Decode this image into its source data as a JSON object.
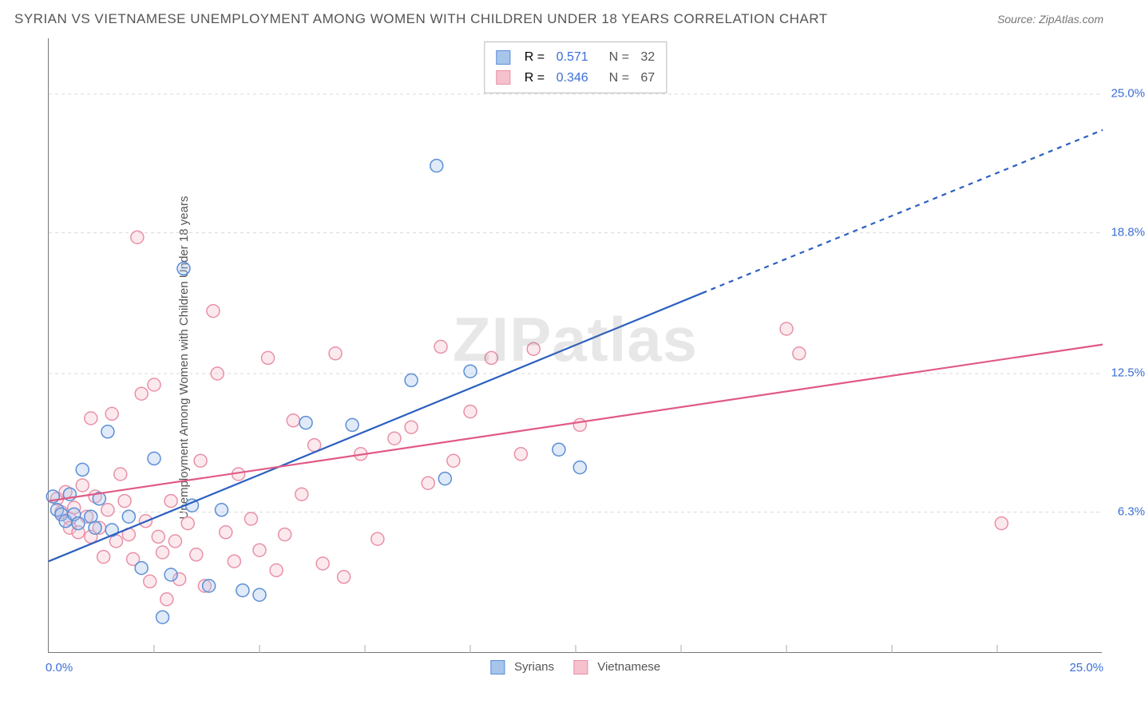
{
  "title": "SYRIAN VS VIETNAMESE UNEMPLOYMENT AMONG WOMEN WITH CHILDREN UNDER 18 YEARS CORRELATION CHART",
  "source": "Source: ZipAtlas.com",
  "watermark": "ZIPatlas",
  "ylabel": "Unemployment Among Women with Children Under 18 years",
  "chart": {
    "type": "scatter",
    "xlim": [
      0,
      25
    ],
    "ylim": [
      0,
      27.5
    ],
    "x_ticks_minor": [
      2.5,
      5.0,
      7.5,
      10.0,
      12.5,
      15.0,
      17.5,
      20.0,
      22.5
    ],
    "x_tick_labels": {
      "min": "0.0%",
      "max": "25.0%"
    },
    "y_grid": [
      6.3,
      12.5,
      18.8,
      25.0
    ],
    "y_tick_labels": [
      "6.3%",
      "12.5%",
      "18.8%",
      "25.0%"
    ],
    "grid_color": "#d9d9d9",
    "background_color": "#ffffff",
    "axis_color": "#777777",
    "tick_label_color": "#3b6fd6",
    "marker_radius": 8,
    "marker_stroke_width": 1.5,
    "marker_fill_opacity": 0.35,
    "trend_line_width": 2.2,
    "series": [
      {
        "name": "Syrians",
        "color_stroke": "#5b8fd6",
        "color_fill": "#a7c4ea",
        "trend_color": "#2b5fc0",
        "R": "0.571",
        "N": "32",
        "trend": {
          "x1": 0,
          "y1": 4.1,
          "x2_solid": 15.5,
          "y2_solid": 16.1,
          "x2_dash": 25,
          "y2_dash": 23.4
        },
        "points": [
          [
            0.1,
            7.0
          ],
          [
            0.2,
            6.4
          ],
          [
            0.3,
            6.2
          ],
          [
            0.4,
            5.9
          ],
          [
            0.5,
            7.1
          ],
          [
            0.6,
            6.2
          ],
          [
            0.7,
            5.8
          ],
          [
            0.8,
            8.2
          ],
          [
            1.0,
            6.1
          ],
          [
            1.1,
            5.6
          ],
          [
            1.2,
            6.9
          ],
          [
            1.4,
            9.9
          ],
          [
            1.5,
            5.5
          ],
          [
            1.9,
            6.1
          ],
          [
            2.2,
            3.8
          ],
          [
            2.5,
            8.7
          ],
          [
            2.7,
            1.6
          ],
          [
            2.9,
            3.5
          ],
          [
            3.2,
            17.2
          ],
          [
            3.4,
            6.6
          ],
          [
            3.8,
            3.0
          ],
          [
            4.1,
            6.4
          ],
          [
            4.6,
            2.8
          ],
          [
            5.0,
            2.6
          ],
          [
            6.1,
            10.3
          ],
          [
            7.2,
            10.2
          ],
          [
            8.6,
            12.2
          ],
          [
            9.2,
            21.8
          ],
          [
            9.4,
            7.8
          ],
          [
            10.0,
            12.6
          ],
          [
            12.1,
            9.1
          ],
          [
            12.6,
            8.3
          ]
        ]
      },
      {
        "name": "Vietnamese",
        "color_stroke": "#e891a6",
        "color_fill": "#f5c1cd",
        "trend_color": "#e05a85",
        "R": "0.346",
        "N": "67",
        "trend": {
          "x1": 0,
          "y1": 6.8,
          "x2_solid": 25,
          "y2_solid": 13.8,
          "x2_dash": 25,
          "y2_dash": 13.8
        },
        "points": [
          [
            0.2,
            6.9
          ],
          [
            0.3,
            6.3
          ],
          [
            0.4,
            7.2
          ],
          [
            0.5,
            6.0
          ],
          [
            0.5,
            5.6
          ],
          [
            0.6,
            6.5
          ],
          [
            0.7,
            5.4
          ],
          [
            0.8,
            7.5
          ],
          [
            0.9,
            6.1
          ],
          [
            1.0,
            5.2
          ],
          [
            1.0,
            10.5
          ],
          [
            1.1,
            7.0
          ],
          [
            1.2,
            5.6
          ],
          [
            1.3,
            4.3
          ],
          [
            1.4,
            6.4
          ],
          [
            1.5,
            10.7
          ],
          [
            1.6,
            5.0
          ],
          [
            1.7,
            8.0
          ],
          [
            1.8,
            6.8
          ],
          [
            1.9,
            5.3
          ],
          [
            2.0,
            4.2
          ],
          [
            2.1,
            18.6
          ],
          [
            2.2,
            11.6
          ],
          [
            2.3,
            5.9
          ],
          [
            2.4,
            3.2
          ],
          [
            2.5,
            12.0
          ],
          [
            2.6,
            5.2
          ],
          [
            2.7,
            4.5
          ],
          [
            2.8,
            2.4
          ],
          [
            2.9,
            6.8
          ],
          [
            3.0,
            5.0
          ],
          [
            3.1,
            3.3
          ],
          [
            3.3,
            5.8
          ],
          [
            3.5,
            4.4
          ],
          [
            3.6,
            8.6
          ],
          [
            3.7,
            3.0
          ],
          [
            3.9,
            15.3
          ],
          [
            4.0,
            12.5
          ],
          [
            4.2,
            5.4
          ],
          [
            4.4,
            4.1
          ],
          [
            4.5,
            8.0
          ],
          [
            4.8,
            6.0
          ],
          [
            5.0,
            4.6
          ],
          [
            5.2,
            13.2
          ],
          [
            5.4,
            3.7
          ],
          [
            5.6,
            5.3
          ],
          [
            5.8,
            10.4
          ],
          [
            6.0,
            7.1
          ],
          [
            6.3,
            9.3
          ],
          [
            6.5,
            4.0
          ],
          [
            6.8,
            13.4
          ],
          [
            7.0,
            3.4
          ],
          [
            7.4,
            8.9
          ],
          [
            7.8,
            5.1
          ],
          [
            8.2,
            9.6
          ],
          [
            8.6,
            10.1
          ],
          [
            9.0,
            7.6
          ],
          [
            9.6,
            8.6
          ],
          [
            10.0,
            10.8
          ],
          [
            10.5,
            13.2
          ],
          [
            11.2,
            8.9
          ],
          [
            11.5,
            13.6
          ],
          [
            12.6,
            10.2
          ],
          [
            17.5,
            14.5
          ],
          [
            17.8,
            13.4
          ],
          [
            22.6,
            5.8
          ],
          [
            9.3,
            13.7
          ]
        ]
      }
    ]
  },
  "legend_bottom": {
    "items": [
      {
        "label": "Syrians",
        "fill": "#a7c4ea",
        "stroke": "#5b8fd6"
      },
      {
        "label": "Vietnamese",
        "fill": "#f5c1cd",
        "stroke": "#e891a6"
      }
    ]
  }
}
